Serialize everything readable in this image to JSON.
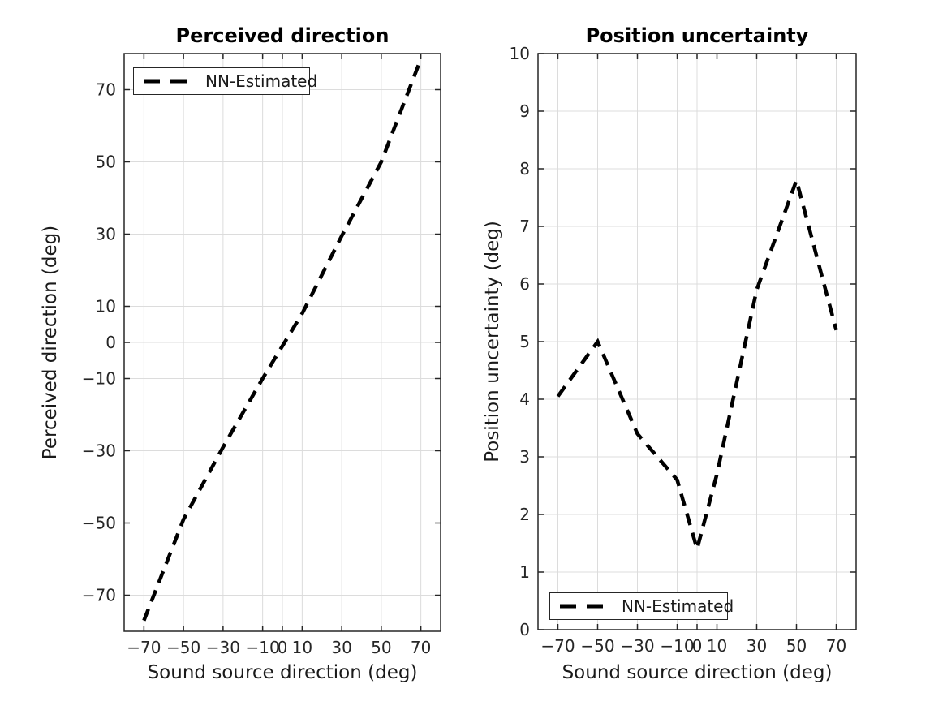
{
  "figure": {
    "background": "#ffffff"
  },
  "style": {
    "axis_color": "#262626",
    "grid_color": "#dcdcdc",
    "tick_label_color": "#262626",
    "text_color": "#1a1a1a",
    "title_color": "#000000",
    "line_color": "#000000",
    "legend_background": "#ffffff"
  },
  "chart_data": [
    {
      "type": "line",
      "title": "Perceived direction",
      "xlabel": "Sound source direction (deg)",
      "ylabel": "Perceived direction (deg)",
      "xlim": [
        -80,
        80
      ],
      "ylim": [
        -80,
        80
      ],
      "xticks": [
        -70,
        -50,
        -30,
        -10,
        0,
        10,
        30,
        50,
        70
      ],
      "xtick_labels": [
        "-70",
        "-50",
        "-30",
        "-10",
        "0",
        "10",
        "30",
        "50",
        "70"
      ],
      "yticks": [
        -70,
        -50,
        -30,
        -10,
        0,
        10,
        30,
        50,
        70
      ],
      "ytick_labels": [
        "-70",
        "-50",
        "-30",
        "-10",
        "0",
        "10",
        "30",
        "50",
        "70"
      ],
      "grid": true,
      "legend_position": "top-left",
      "series": [
        {
          "name": "NN-Estimated",
          "line_style": "dashed",
          "color": "#000000",
          "x": [
            -70,
            -50,
            -30,
            -10,
            0,
            10,
            30,
            50,
            70
          ],
          "y": [
            -77,
            -49,
            -29,
            -10,
            -1,
            8,
            29.5,
            50,
            78.5
          ]
        }
      ]
    },
    {
      "type": "line",
      "title": "Position uncertainty",
      "xlabel": "Sound source direction (deg)",
      "ylabel": "Position uncertainty (deg)",
      "xlim": [
        -80,
        80
      ],
      "ylim": [
        0,
        10
      ],
      "xticks": [
        -70,
        -50,
        -30,
        -10,
        0,
        10,
        30,
        50,
        70
      ],
      "xtick_labels": [
        "-70",
        "-50",
        "-30",
        "-10",
        "0",
        "10",
        "30",
        "50",
        "70"
      ],
      "yticks": [
        0,
        1,
        2,
        3,
        4,
        5,
        6,
        7,
        8,
        9,
        10
      ],
      "ytick_labels": [
        "0",
        "1",
        "2",
        "3",
        "4",
        "5",
        "6",
        "7",
        "8",
        "9",
        "10"
      ],
      "grid": true,
      "legend_position": "bottom-left",
      "series": [
        {
          "name": "NN-Estimated",
          "line_style": "dashed",
          "color": "#000000",
          "x": [
            -70,
            -50,
            -30,
            -10,
            0,
            10,
            30,
            50,
            70
          ],
          "y": [
            4.05,
            5.0,
            3.4,
            2.6,
            1.4,
            2.7,
            5.9,
            7.8,
            5.2
          ]
        }
      ]
    }
  ]
}
